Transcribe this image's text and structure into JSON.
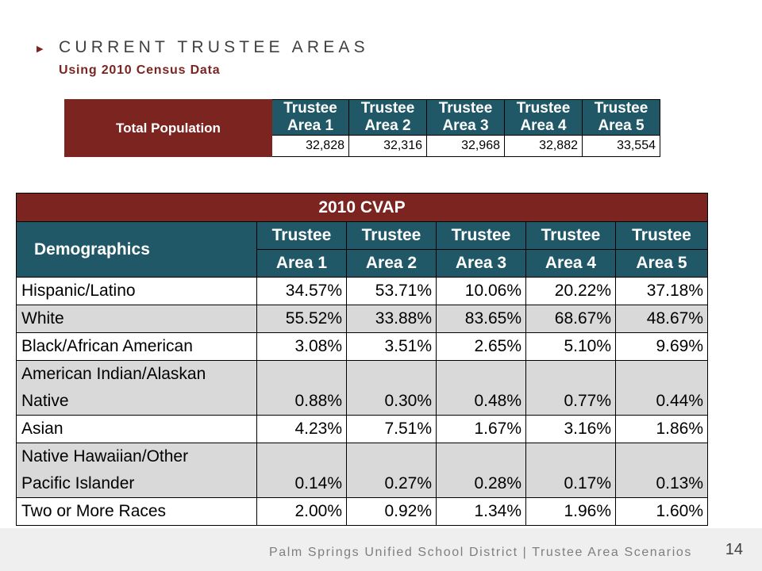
{
  "slide": {
    "title": "CURRENT TRUSTEE AREAS",
    "subtitle": "Using 2010 Census Data",
    "footer": "Palm Springs Unified School District | Trustee Area Scenarios",
    "page_number": "14"
  },
  "population_table": {
    "label": "Total Population",
    "headers": [
      [
        "Trustee",
        "Area 1"
      ],
      [
        "Trustee",
        "Area 2"
      ],
      [
        "Trustee",
        "Area 3"
      ],
      [
        "Trustee",
        "Area 4"
      ],
      [
        "Trustee",
        "Area 5"
      ]
    ],
    "values": [
      "32,828",
      "32,316",
      "32,968",
      "32,882",
      "33,554"
    ]
  },
  "cvap_table": {
    "title": "2010 CVAP",
    "demographics_label": "Demographics",
    "headers": [
      [
        "Trustee",
        "Area 1"
      ],
      [
        "Trustee",
        "Area 2"
      ],
      [
        "Trustee",
        "Area 3"
      ],
      [
        "Trustee",
        "Area 4"
      ],
      [
        "Trustee",
        "Area 5"
      ]
    ],
    "rows": [
      {
        "label": [
          "Hispanic/Latino"
        ],
        "values": [
          "34.57%",
          "53.71%",
          "10.06%",
          "20.22%",
          "37.18%"
        ]
      },
      {
        "label": [
          "White"
        ],
        "values": [
          "55.52%",
          "33.88%",
          "83.65%",
          "68.67%",
          "48.67%"
        ]
      },
      {
        "label": [
          "Black/African American"
        ],
        "values": [
          "3.08%",
          "3.51%",
          "2.65%",
          "5.10%",
          "9.69%"
        ]
      },
      {
        "label": [
          "American Indian/Alaskan",
          "Native"
        ],
        "values": [
          "0.88%",
          "0.30%",
          "0.48%",
          "0.77%",
          "0.44%"
        ]
      },
      {
        "label": [
          "Asian"
        ],
        "values": [
          "4.23%",
          "7.51%",
          "1.67%",
          "3.16%",
          "1.86%"
        ]
      },
      {
        "label": [
          "Native Hawaiian/Other",
          "Pacific Islander"
        ],
        "values": [
          "0.14%",
          "0.27%",
          "0.28%",
          "0.17%",
          "0.13%"
        ]
      },
      {
        "label": [
          "Two or More Races"
        ],
        "values": [
          "2.00%",
          "0.92%",
          "1.34%",
          "1.96%",
          "1.60%"
        ]
      }
    ]
  },
  "colors": {
    "accent_red": "#7b2420",
    "header_teal": "#215867",
    "row_shade": "#d9d9d9"
  }
}
